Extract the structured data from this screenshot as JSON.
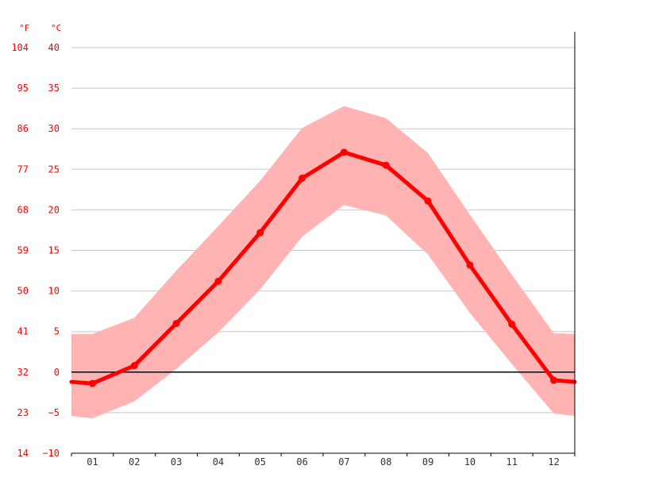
{
  "chart_data": {
    "type": "line",
    "title": "",
    "xlabel": "",
    "ylabel": "",
    "units": {
      "fahrenheit": "°F",
      "celsius": "°C"
    },
    "categories": [
      "01",
      "02",
      "03",
      "04",
      "05",
      "06",
      "07",
      "08",
      "09",
      "10",
      "11",
      "12"
    ],
    "y_ticks_c": [
      40,
      35,
      30,
      25,
      20,
      15,
      10,
      5,
      0,
      -5,
      -10
    ],
    "y_ticks_f": [
      104,
      95,
      86,
      77,
      68,
      59,
      50,
      41,
      32,
      23,
      14
    ],
    "ylim": [
      -10,
      40
    ],
    "grid": true,
    "series": [
      {
        "role": "average",
        "values": [
          -1.4,
          0.8,
          6.0,
          11.2,
          17.2,
          23.9,
          27.1,
          25.5,
          21.1,
          13.2,
          5.9,
          -1.0
        ]
      },
      {
        "role": "range-upper",
        "values": [
          4.7,
          6.7,
          12.5,
          18.0,
          23.6,
          30.1,
          32.8,
          31.3,
          27.0,
          19.4,
          12.0,
          4.8
        ]
      },
      {
        "role": "range-lower",
        "values": [
          -5.7,
          -3.6,
          0.4,
          4.9,
          10.2,
          16.7,
          20.6,
          19.3,
          14.5,
          7.3,
          1.0,
          -5.1
        ]
      }
    ],
    "edge_values": {
      "left": {
        "avg": -1.2,
        "upper": 4.7,
        "lower": -5.4
      },
      "right": {
        "avg": -1.2,
        "upper": 4.7,
        "lower": -5.4
      }
    },
    "colors": {
      "line": "#ff0000",
      "band": "#ffb3b3",
      "grid": "#c8c8c8",
      "zero": "#000000",
      "tick_text": "#ff0000",
      "x_text": "#333333"
    }
  }
}
